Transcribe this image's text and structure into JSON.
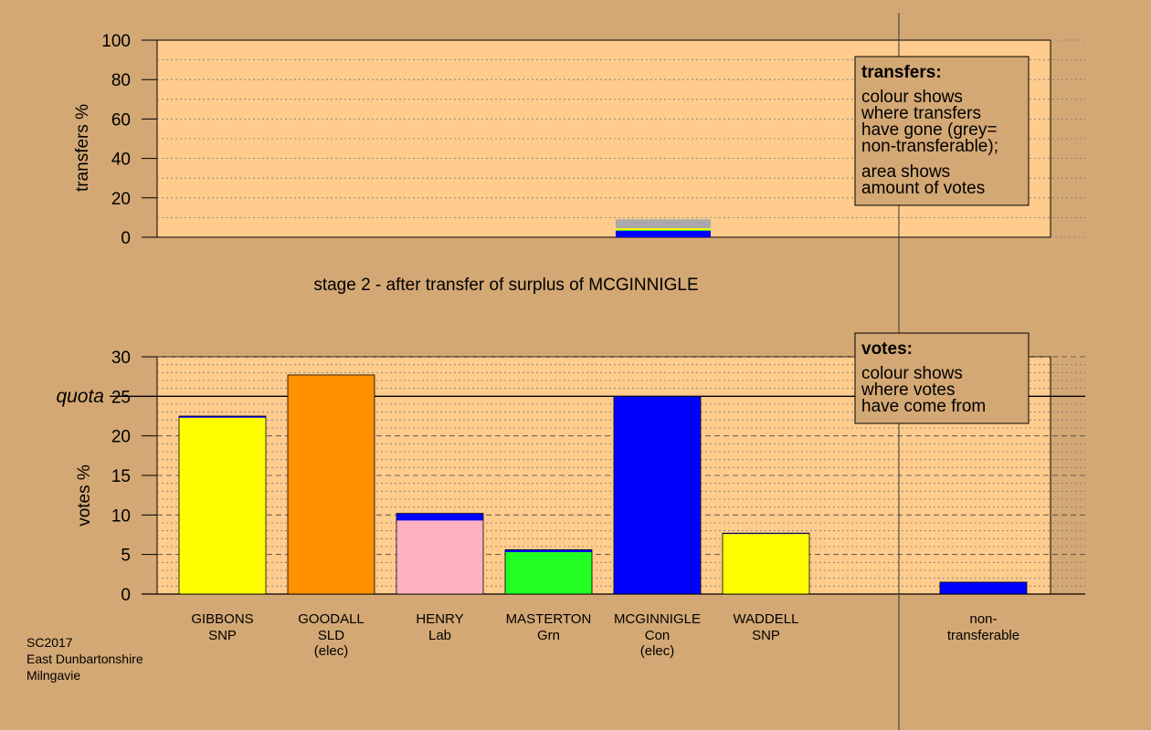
{
  "stage_title": "stage 2 - after transfer of surplus of MCGINNIGLE",
  "footer": [
    "SC2017",
    "East Dunbartonshire",
    "Milngavie"
  ],
  "legend_transfers": {
    "title": "transfers:",
    "lines1": [
      "colour shows",
      "where transfers",
      "have gone (grey=",
      "non-transferable);"
    ],
    "lines2": [
      "area shows",
      "amount of votes"
    ]
  },
  "legend_votes": {
    "title": "votes:",
    "lines": [
      "colour shows",
      "where votes",
      "have come from"
    ]
  },
  "colors": {
    "background": "#d4a874",
    "panel": "#ffcc8d",
    "SNP": "#ffff00",
    "SLD": "#ff9000",
    "Lab": "#ffb0c0",
    "Grn": "#22ff22",
    "Con": "#0000ff",
    "nontransferable": "#a9a9a9"
  },
  "chart_data": [
    {
      "type": "bar",
      "ylabel": "transfers %",
      "ylim": [
        0,
        100
      ],
      "yticks": [
        0,
        20,
        40,
        60,
        80,
        100
      ],
      "transfer_from": "MCGINNIGLE",
      "segments": [
        {
          "color": "#0000ff",
          "value": 3.3
        },
        {
          "color": "#22ff22",
          "value": 0.5
        },
        {
          "color": "#ffff00",
          "value": 0.8
        },
        {
          "color": "#a9a9a9",
          "value": 4.5
        }
      ]
    },
    {
      "type": "bar",
      "ylabel": "votes %",
      "ylim": [
        0,
        30
      ],
      "yticks": [
        0,
        5,
        10,
        15,
        20,
        25,
        30
      ],
      "quota": 25,
      "quota_label": "quota",
      "candidates": [
        {
          "name": "GIBBONS",
          "party": "SNP",
          "note": "",
          "segments": [
            {
              "color": "#ffff00",
              "value": 22.3
            },
            {
              "color": "#0000ff",
              "value": 0.2
            }
          ]
        },
        {
          "name": "GOODALL",
          "party": "SLD",
          "note": "(elec)",
          "segments": [
            {
              "color": "#ff9000",
              "value": 27.7
            }
          ]
        },
        {
          "name": "HENRY",
          "party": "Lab",
          "note": "",
          "segments": [
            {
              "color": "#ffb0c0",
              "value": 9.3
            },
            {
              "color": "#0000ff",
              "value": 0.9
            }
          ]
        },
        {
          "name": "MASTERTON",
          "party": "Grn",
          "note": "",
          "segments": [
            {
              "color": "#22ff22",
              "value": 5.3
            },
            {
              "color": "#0000ff",
              "value": 0.3
            }
          ]
        },
        {
          "name": "MCGINNIGLE",
          "party": "Con",
          "note": "(elec)",
          "segments": [
            {
              "color": "#0000ff",
              "value": 25.0
            }
          ]
        },
        {
          "name": "WADDELL",
          "party": "SNP",
          "note": "",
          "segments": [
            {
              "color": "#ffff00",
              "value": 7.6
            },
            {
              "color": "#0000ff",
              "value": 0.1
            }
          ]
        }
      ],
      "nontransferable": {
        "label1": "non-",
        "label2": "transferable",
        "segments": [
          {
            "color": "#0000ff",
            "value": 1.5
          }
        ]
      }
    }
  ]
}
